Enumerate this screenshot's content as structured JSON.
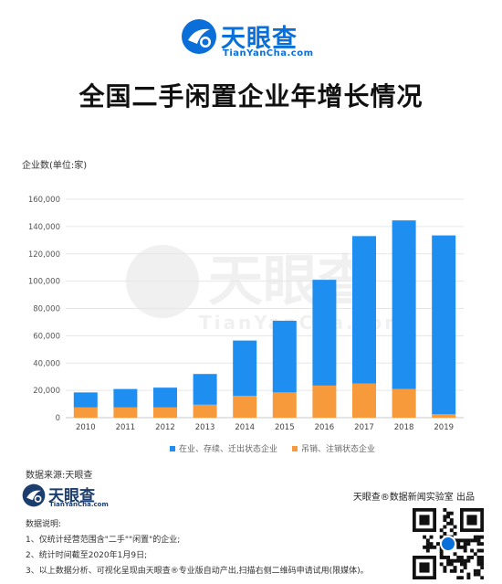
{
  "brand": {
    "name": "天眼查",
    "url": "TianYanCha.com"
  },
  "title": "全国二手闲置企业年增长情况",
  "colors": {
    "blue": "#1e8ef0",
    "orange": "#f79a3c",
    "brand": "#0a6fd8"
  },
  "chart_data": {
    "type": "bar",
    "stacked": true,
    "ylabel": "企业数(单位:家)",
    "categories": [
      "2010",
      "2011",
      "2012",
      "2013",
      "2014",
      "2015",
      "2016",
      "2017",
      "2018",
      "2019"
    ],
    "series": [
      {
        "name": "吊销、注销状态企业",
        "color": "#f79a3c",
        "values": [
          7500,
          7500,
          7500,
          9500,
          16000,
          18500,
          23500,
          25000,
          21000,
          2500
        ]
      },
      {
        "name": "在业、存续、迁出状态企业",
        "color": "#1e8ef0",
        "values": [
          11000,
          13500,
          14500,
          22500,
          40500,
          52500,
          77500,
          108000,
          123500,
          131000
        ]
      }
    ],
    "ylim": [
      0,
      160000
    ],
    "yticks": [
      "0",
      "20,000",
      "40,000",
      "60,000",
      "80,000",
      "100,000",
      "120,000",
      "140,000",
      "160,000"
    ],
    "grid": true,
    "legend_position": "bottom"
  },
  "footer": {
    "source": "数据来源:天眼查",
    "lab": "天眼查®数据新闻实验室 出品",
    "notes": [
      "数据说明:",
      "1、仅统计经营范围含\"二手\"\"闲置\"的企业;",
      "2、统计时间截至2020年1月9日;",
      "3、以上数据分析、可视化呈现由天眼查®专业版自动产出,扫描右侧二维码申请试用(限媒体)。"
    ]
  }
}
